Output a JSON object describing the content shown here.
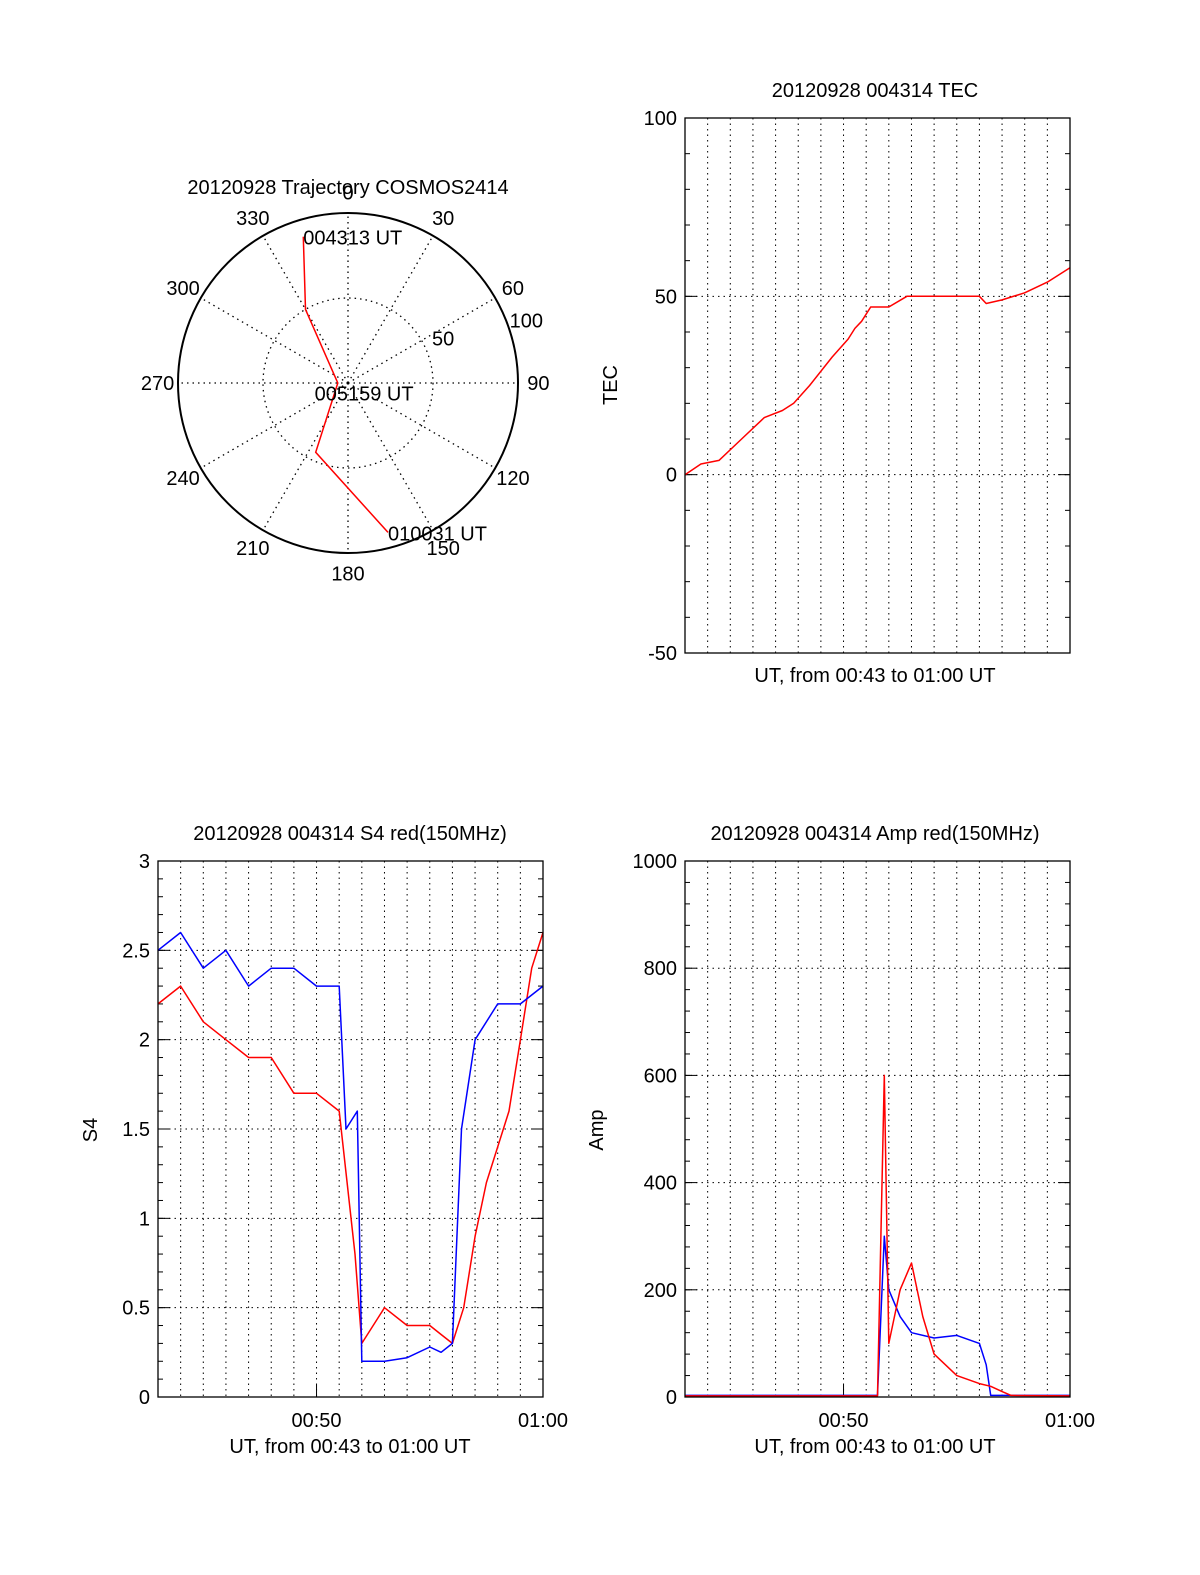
{
  "chart_data": [
    {
      "type": "polar",
      "title": "20120928 Trajectory COSMOS2414",
      "azimuth_ticks": [
        0,
        30,
        60,
        90,
        120,
        150,
        180,
        210,
        240,
        270,
        300,
        330
      ],
      "radial_ticks": [
        50,
        100
      ],
      "radial_range": [
        0,
        100
      ],
      "grid": true,
      "series": [
        {
          "color": "#ff0000",
          "points": [
            {
              "az": 343,
              "r": 90
            },
            {
              "az": 330,
              "r": 50
            },
            {
              "az": 270,
              "r": 6
            },
            {
              "az": 205,
              "r": 45
            },
            {
              "az": 165,
              "r": 91
            }
          ]
        }
      ],
      "annotations": [
        {
          "label": "004313 UT",
          "az": 343,
          "r": 90
        },
        {
          "label": "005159 UT",
          "az": 260,
          "r": 5
        },
        {
          "label": "010031 UT",
          "az": 165,
          "r": 91
        }
      ]
    },
    {
      "type": "line",
      "title": "20120928 004314 TEC",
      "xlabel": "UT, from 00:43 to 01:00 UT",
      "ylabel": "TEC",
      "xlim": [
        43,
        60
      ],
      "ylim": [
        -50,
        100
      ],
      "yticks": [
        -50,
        0,
        50,
        100
      ],
      "grid": true,
      "series": [
        {
          "color": "#ff0000",
          "x": [
            43.0,
            43.7,
            44.5,
            45.5,
            46.5,
            47.3,
            47.8,
            48.5,
            49.5,
            50.2,
            50.5,
            50.8,
            51.2,
            52.0,
            52.8,
            54.0,
            55.0,
            56.0,
            56.3,
            57.0,
            58.0,
            59.0,
            60.0
          ],
          "y": [
            0,
            3,
            4,
            10,
            16,
            18,
            20,
            25,
            33,
            38,
            41,
            43,
            47,
            47,
            50,
            50,
            50,
            50,
            48,
            49,
            51,
            54,
            58
          ]
        }
      ]
    },
    {
      "type": "line",
      "title": "20120928 004314 S4 red(150MHz)",
      "xlabel": "UT, from 00:43 to 01:00 UT",
      "ylabel": "S4",
      "xlim": [
        43,
        60
      ],
      "ylim": [
        0,
        3
      ],
      "xticks": [
        {
          "v": 50,
          "label": "00:50"
        },
        {
          "v": 60,
          "label": "01:00"
        }
      ],
      "yticks": [
        {
          "v": 0,
          "label": "0"
        },
        {
          "v": 0.5,
          "label": "0.5"
        },
        {
          "v": 1,
          "label": "1"
        },
        {
          "v": 1.5,
          "label": "1.5"
        },
        {
          "v": 2,
          "label": "2"
        },
        {
          "v": 2.5,
          "label": "2.5"
        },
        {
          "v": 3,
          "label": "3"
        }
      ],
      "grid": true,
      "series": [
        {
          "color": "#ff0000",
          "x": [
            43.0,
            44.0,
            45.0,
            46.0,
            47.0,
            48.0,
            49.0,
            50.0,
            51.0,
            51.7,
            52.0,
            53.0,
            54.0,
            55.0,
            55.5,
            56.0,
            56.5,
            57.0,
            57.5,
            58.0,
            58.5,
            59.0,
            59.5,
            60.0
          ],
          "y": [
            2.2,
            2.3,
            2.1,
            2.0,
            1.9,
            1.9,
            1.7,
            1.7,
            1.6,
            0.8,
            0.3,
            0.5,
            0.4,
            0.4,
            0.35,
            0.3,
            0.5,
            0.9,
            1.2,
            1.4,
            1.6,
            2.0,
            2.4,
            2.6
          ]
        },
        {
          "color": "#0000ff",
          "x": [
            43.0,
            44.0,
            45.0,
            46.0,
            47.0,
            48.0,
            49.0,
            50.0,
            51.0,
            51.3,
            51.8,
            52.0,
            52.5,
            53.0,
            54.0,
            55.0,
            55.5,
            56.0,
            56.4,
            57.0,
            58.0,
            59.0,
            60.0
          ],
          "y": [
            2.5,
            2.6,
            2.4,
            2.5,
            2.3,
            2.4,
            2.4,
            2.3,
            2.3,
            1.5,
            1.6,
            0.2,
            0.2,
            0.2,
            0.22,
            0.28,
            0.25,
            0.3,
            1.5,
            2.0,
            2.2,
            2.2,
            2.3
          ]
        }
      ]
    },
    {
      "type": "line",
      "title": "20120928 004314 Amp red(150MHz)",
      "xlabel": "UT, from 00:43 to 01:00 UT",
      "ylabel": "Amp",
      "xlim": [
        43,
        60
      ],
      "ylim": [
        0,
        1000
      ],
      "xticks": [
        {
          "v": 50,
          "label": "00:50"
        },
        {
          "v": 60,
          "label": "01:00"
        }
      ],
      "yticks": [
        {
          "v": 0,
          "label": "0"
        },
        {
          "v": 200,
          "label": "200"
        },
        {
          "v": 400,
          "label": "400"
        },
        {
          "v": 600,
          "label": "600"
        },
        {
          "v": 800,
          "label": "800"
        },
        {
          "v": 1000,
          "label": "1000"
        }
      ],
      "grid": true,
      "series": [
        {
          "color": "#0000ff",
          "x": [
            43.0,
            51.5,
            51.8,
            52.0,
            52.5,
            53.0,
            54.0,
            55.0,
            56.0,
            56.3,
            56.5,
            60.0
          ],
          "y": [
            3,
            3,
            300,
            200,
            150,
            120,
            110,
            115,
            100,
            60,
            3,
            3
          ]
        },
        {
          "color": "#ff0000",
          "x": [
            43.0,
            51.5,
            51.8,
            52.0,
            52.5,
            53.0,
            53.5,
            54.0,
            55.0,
            56.0,
            56.5,
            57.0,
            57.4,
            60.0
          ],
          "y": [
            2,
            2,
            600,
            100,
            200,
            250,
            150,
            80,
            40,
            25,
            20,
            10,
            3,
            2
          ]
        }
      ]
    }
  ]
}
